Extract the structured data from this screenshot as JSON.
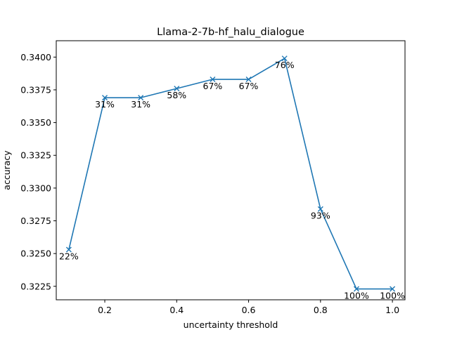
{
  "chart_data": {
    "type": "line",
    "title": "Llama-2-7b-hf_halu_dialogue",
    "xlabel": "uncertainty threshold",
    "ylabel": "accuracy",
    "xlim": [
      0.065,
      1.035
    ],
    "ylim": [
      0.32147,
      0.34125
    ],
    "xticks": [
      0.2,
      0.4,
      0.6,
      0.8,
      1.0
    ],
    "xtick_labels": [
      "0.2",
      "0.4",
      "0.6",
      "0.8",
      "1.0"
    ],
    "yticks": [
      0.3225,
      0.325,
      0.3275,
      0.33,
      0.3325,
      0.335,
      0.3375,
      0.34
    ],
    "ytick_labels": [
      "0.3225",
      "0.3250",
      "0.3275",
      "0.3300",
      "0.3325",
      "0.3350",
      "0.3375",
      "0.3400"
    ],
    "grid": false,
    "marker": "x",
    "line_color": "#1f77b4",
    "series": [
      {
        "x": [
          0.1,
          0.2,
          0.3,
          0.4,
          0.5,
          0.6,
          0.7,
          0.8,
          0.9,
          1.0
        ],
        "y": [
          0.3253,
          0.3369,
          0.3369,
          0.3376,
          0.3383,
          0.3383,
          0.3399,
          0.3284,
          0.3223,
          0.3223
        ],
        "labels": [
          "22%",
          "31%",
          "31%",
          "58%",
          "67%",
          "67%",
          "76%",
          "93%",
          "100%",
          "100%"
        ]
      }
    ]
  }
}
